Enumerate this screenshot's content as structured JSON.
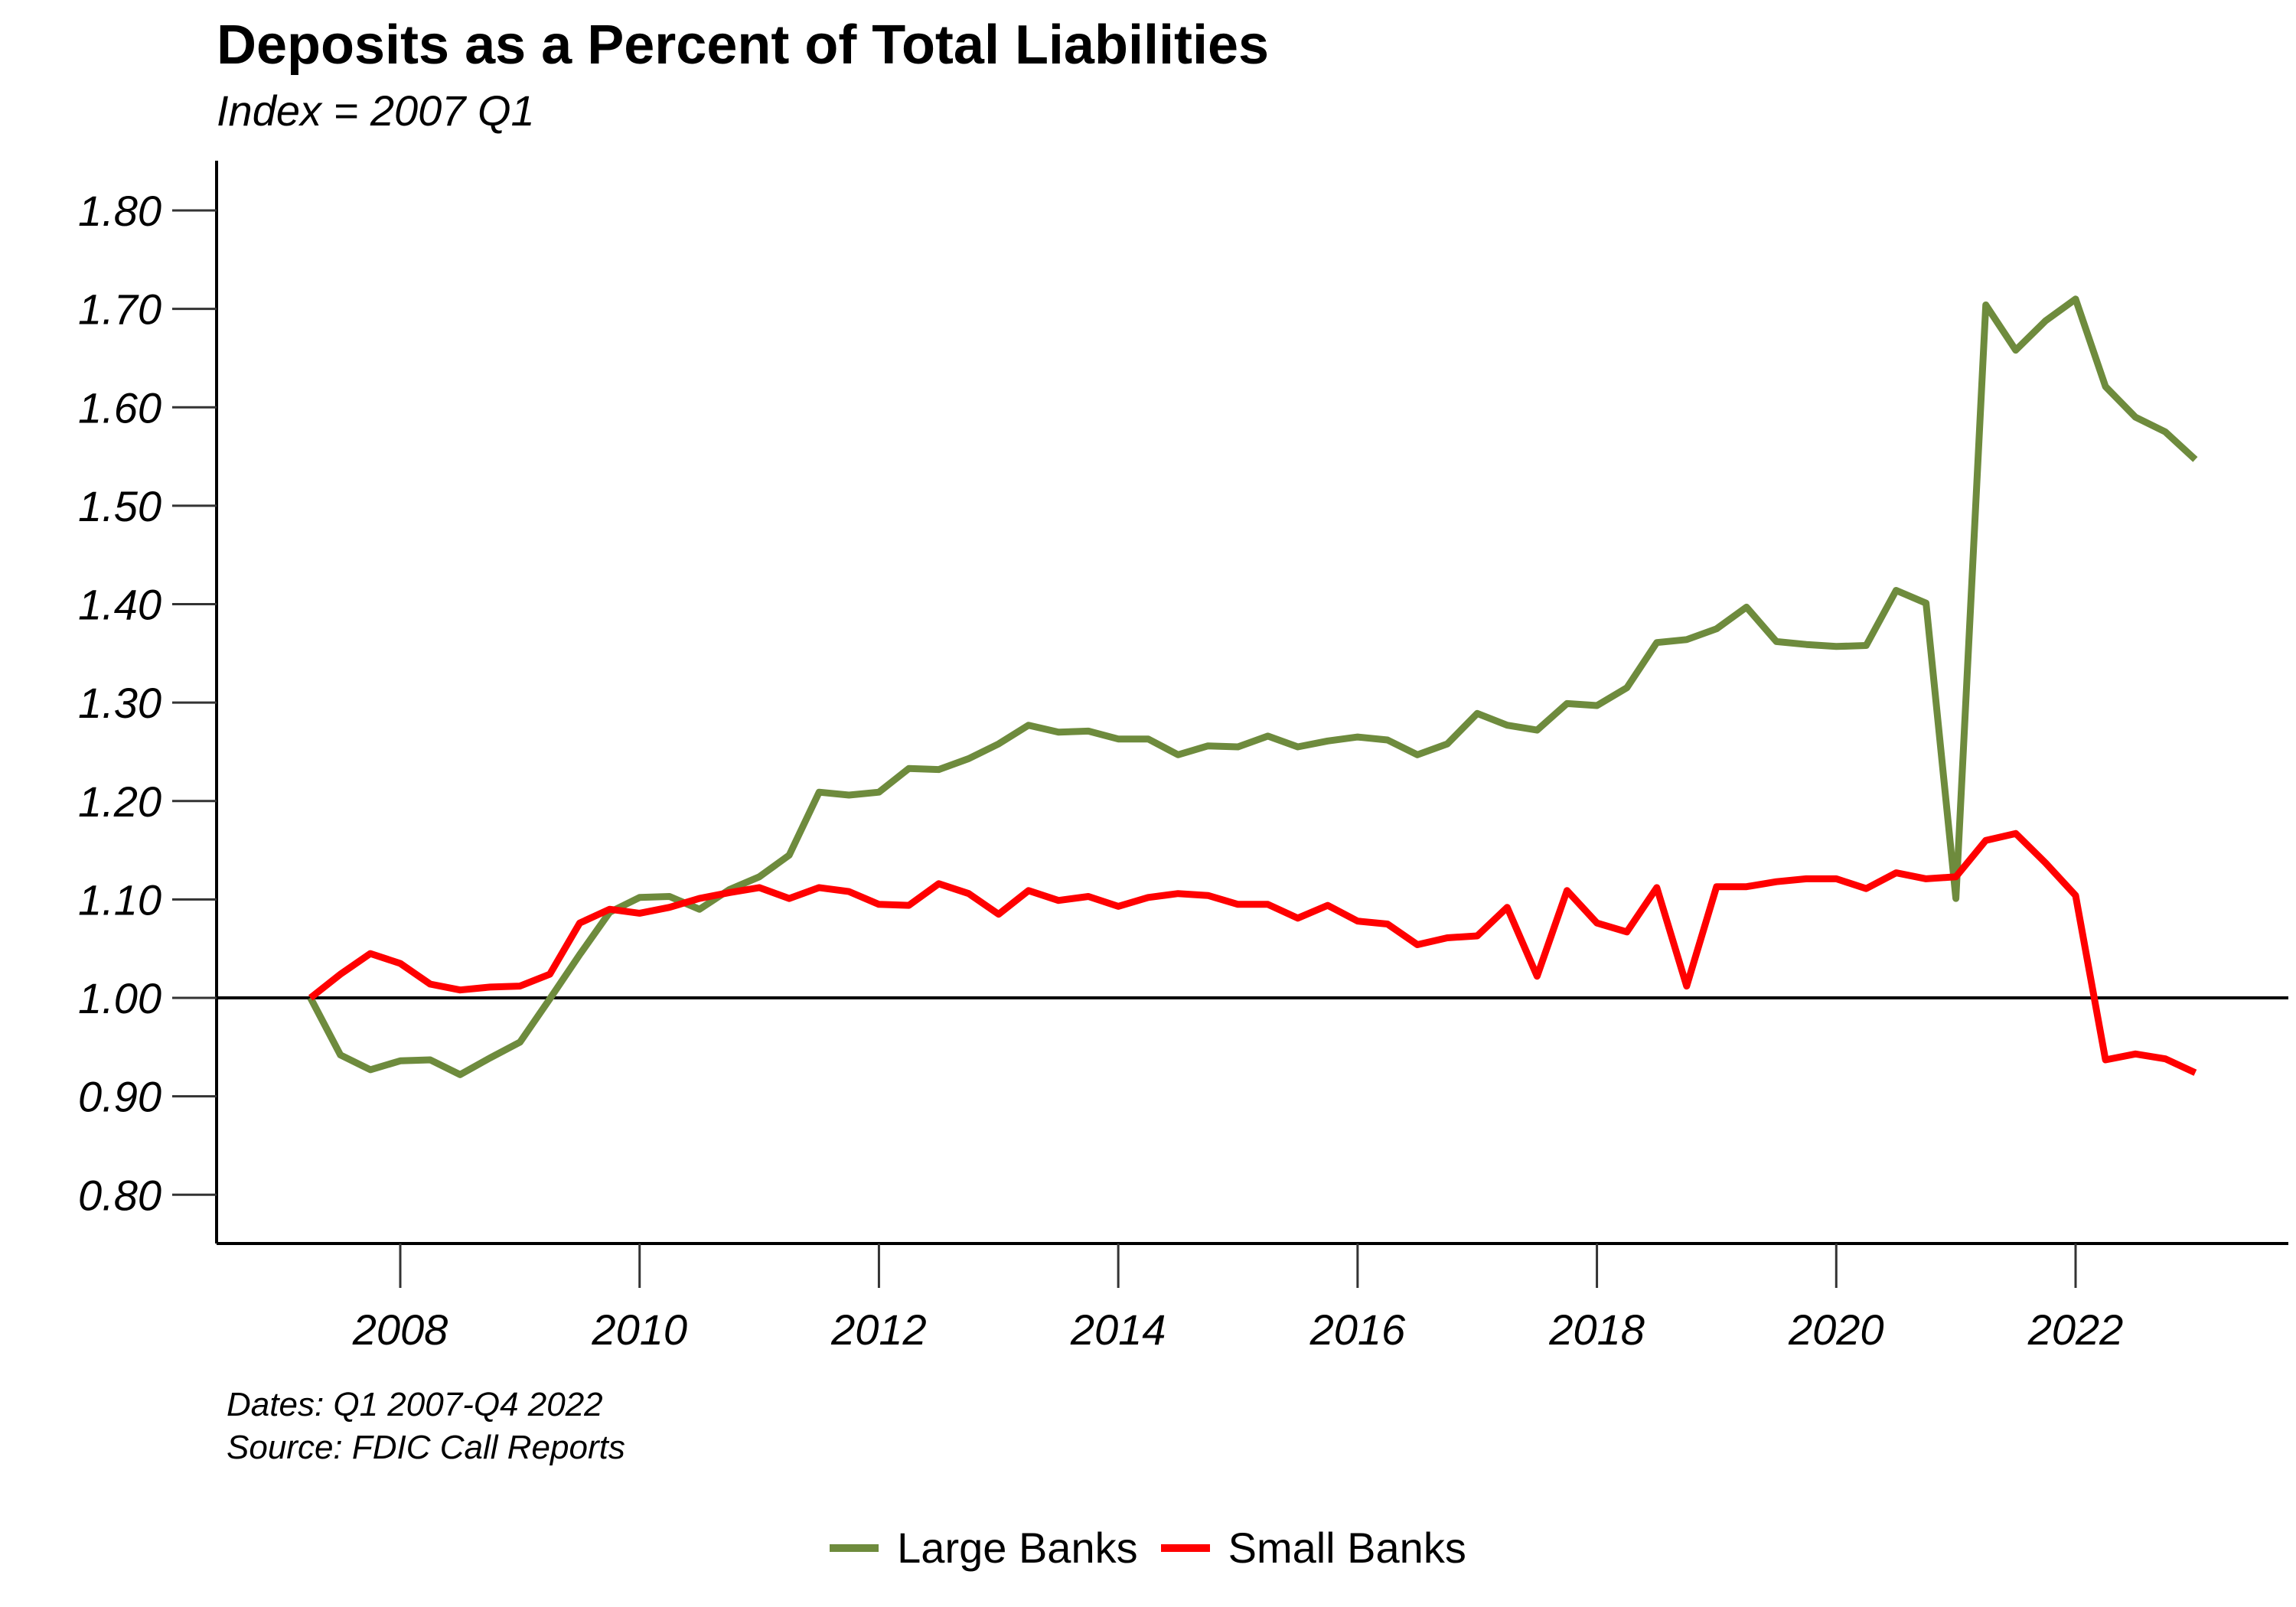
{
  "chart_data": {
    "type": "line",
    "title": "Deposits as a Percent of Total Liabilities",
    "subtitle": "Index = 2007 Q1",
    "xlabel": "",
    "ylabel": "",
    "ylim": [
      0.75,
      1.85
    ],
    "xlim": [
      2006.6,
      2023.8
    ],
    "y_ticks": [
      "0.80",
      "0.90",
      "1.00",
      "1.10",
      "1.20",
      "1.30",
      "1.40",
      "1.50",
      "1.60",
      "1.70",
      "1.80"
    ],
    "x_ticks": [
      "2008",
      "2010",
      "2012",
      "2014",
      "2016",
      "2018",
      "2020",
      "2022"
    ],
    "reference_line": 1.0,
    "grid": false,
    "legend_position": "bottom",
    "x": [
      2007.25,
      2007.5,
      2007.75,
      2008.0,
      2008.25,
      2008.5,
      2008.75,
      2009.0,
      2009.25,
      2009.5,
      2009.75,
      2010.0,
      2010.25,
      2010.5,
      2010.75,
      2011.0,
      2011.25,
      2011.5,
      2011.75,
      2012.0,
      2012.25,
      2012.5,
      2012.75,
      2013.0,
      2013.25,
      2013.5,
      2013.75,
      2014.0,
      2014.25,
      2014.5,
      2014.75,
      2015.0,
      2015.25,
      2015.5,
      2015.75,
      2016.0,
      2016.25,
      2016.5,
      2016.75,
      2017.0,
      2017.25,
      2017.5,
      2017.75,
      2018.0,
      2018.25,
      2018.5,
      2018.75,
      2019.0,
      2019.25,
      2019.5,
      2019.75,
      2020.0,
      2020.25,
      2020.5,
      2020.75,
      2021.0,
      2021.25,
      2021.5,
      2021.75,
      2022.0,
      2022.25,
      2022.5,
      2022.75,
      2023.0
    ],
    "series": [
      {
        "name": "Large Banks",
        "color": "#6e8b3d",
        "values": [
          1.0,
          0.942,
          0.927,
          0.936,
          0.937,
          0.922,
          0.939,
          0.955,
          0.999,
          1.044,
          1.087,
          1.102,
          1.103,
          1.09,
          1.11,
          1.123,
          1.145,
          1.209,
          1.206,
          1.209,
          1.233,
          1.232,
          1.243,
          1.258,
          1.277,
          1.27,
          1.271,
          1.263,
          1.263,
          1.247,
          1.256,
          1.255,
          1.266,
          1.255,
          1.261,
          1.265,
          1.262,
          1.247,
          1.258,
          1.289,
          1.277,
          1.272,
          1.299,
          1.297,
          1.315,
          1.361,
          1.364,
          1.375,
          1.397,
          1.362,
          1.359,
          1.357,
          1.358,
          1.414,
          1.401,
          1.101,
          1.704,
          1.658,
          1.688,
          1.71,
          1.621,
          1.59,
          1.575,
          1.547
        ]
      },
      {
        "name": "Small Banks",
        "color": "#ff0000",
        "values": [
          1.0,
          1.024,
          1.045,
          1.035,
          1.014,
          1.008,
          1.011,
          1.012,
          1.024,
          1.076,
          1.09,
          1.086,
          1.092,
          1.101,
          1.107,
          1.112,
          1.101,
          1.112,
          1.108,
          1.095,
          1.094,
          1.116,
          1.106,
          1.085,
          1.109,
          1.099,
          1.103,
          1.093,
          1.102,
          1.106,
          1.104,
          1.095,
          1.095,
          1.081,
          1.094,
          1.078,
          1.075,
          1.054,
          1.061,
          1.063,
          1.092,
          1.022,
          1.109,
          1.076,
          1.067,
          1.112,
          1.012,
          1.113,
          1.113,
          1.118,
          1.121,
          1.121,
          1.111,
          1.127,
          1.121,
          1.123,
          1.16,
          1.167,
          1.137,
          1.104,
          0.937,
          0.943,
          0.938,
          0.924
        ]
      }
    ]
  },
  "caption": {
    "dates": "Dates: Q1 2007-Q4 2022",
    "source": "Source: FDIC Call Reports"
  },
  "legend": {
    "items": [
      {
        "label": "Large Banks",
        "color": "#6e8b3d"
      },
      {
        "label": "Small Banks",
        "color": "#ff0000"
      }
    ]
  }
}
